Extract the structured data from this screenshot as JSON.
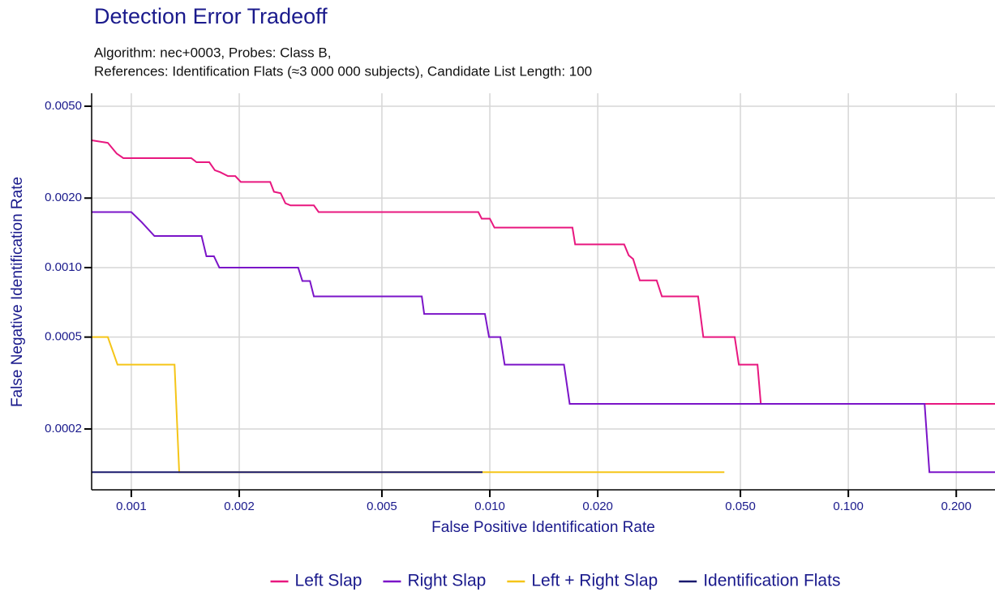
{
  "chart_data": {
    "type": "line",
    "title": "Detection Error Tradeoff",
    "subtitle": [
      "Algorithm: nec+0003, Probes: Class B,",
      "References: Identification Flats (≈3 000 000 subjects), Candidate List Length: 100"
    ],
    "xlabel": "False Positive Identification Rate",
    "ylabel": "False Negative Identification Rate",
    "xlog": true,
    "ylog": true,
    "grid": true,
    "legend": "bottom",
    "xlim": [
      0.000775,
      0.2565
    ],
    "ylim": [
      0.000109,
      0.00569
    ],
    "xticks": [
      0.001,
      0.002,
      0.005,
      {
        "value": 0.01,
        "label": "0.010"
      },
      {
        "value": 0.02,
        "label": "0.020"
      },
      {
        "value": 0.05,
        "label": "0.050"
      },
      {
        "value": 0.1,
        "label": "0.100"
      },
      {
        "value": 0.2,
        "label": "0.200"
      }
    ],
    "yticks": [
      {
        "value": 0.005,
        "label": "0.0050"
      },
      {
        "value": 0.002,
        "label": "0.0020"
      },
      {
        "value": 0.001,
        "label": "0.0010"
      },
      0.0005,
      0.0002
    ],
    "series": [
      {
        "name": "Left Slap",
        "color": "#e8177f",
        "x": [
          0.000775,
          0.00086,
          0.00091,
          0.00095,
          0.00147,
          0.00152,
          0.00165,
          0.00171,
          0.00177,
          0.00186,
          0.00195,
          0.00202,
          0.00244,
          0.0025,
          0.00261,
          0.00269,
          0.00278,
          0.00323,
          0.00333,
          0.00929,
          0.00949,
          0.01,
          0.0103,
          0.017,
          0.0173,
          0.0237,
          0.0244,
          0.0251,
          0.0262,
          0.0292,
          0.0302,
          0.0381,
          0.0394,
          0.0482,
          0.0495,
          0.0558,
          0.057,
          0.2565
        ],
        "values": [
          0.00356,
          0.00347,
          0.00312,
          0.00298,
          0.00298,
          0.00286,
          0.00286,
          0.00264,
          0.00259,
          0.00249,
          0.00249,
          0.00235,
          0.00235,
          0.00213,
          0.0021,
          0.0019,
          0.00186,
          0.00186,
          0.00174,
          0.00174,
          0.00163,
          0.00163,
          0.00149,
          0.00149,
          0.00126,
          0.00126,
          0.00113,
          0.00109,
          0.00088,
          0.00088,
          0.00075,
          0.00075,
          0.0005,
          0.0005,
          0.00038,
          0.00038,
          0.000257,
          0.000257
        ]
      },
      {
        "name": "Right Slap",
        "color": "#7b14c8",
        "x": [
          0.000775,
          0.001,
          0.00107,
          0.00116,
          0.00157,
          0.00162,
          0.0017,
          0.00176,
          0.00292,
          0.003,
          0.00315,
          0.00323,
          0.00646,
          0.00656,
          0.00969,
          0.00995,
          0.0107,
          0.011,
          0.0161,
          0.0167,
          0.1632,
          0.1683,
          0.2565
        ],
        "values": [
          0.00174,
          0.00174,
          0.00157,
          0.00137,
          0.00137,
          0.00112,
          0.00112,
          0.001,
          0.001,
          0.000875,
          0.000875,
          0.00075,
          0.00075,
          0.00063,
          0.00063,
          0.0005,
          0.0005,
          0.00038,
          0.00038,
          0.000257,
          0.000257,
          0.00013,
          0.00013
        ]
      },
      {
        "name": "Left + Right Slap",
        "color": "#f5c518",
        "x": [
          0.000775,
          0.00086,
          0.000915,
          0.00132,
          0.00136,
          0.0451
        ],
        "values": [
          0.0005,
          0.0005,
          0.00038,
          0.00038,
          0.00013,
          0.00013
        ]
      },
      {
        "name": "Identification Flats",
        "color": "#1a1a6e",
        "x": [
          0.000775,
          0.00954
        ],
        "values": [
          0.00013,
          0.00013
        ]
      }
    ]
  }
}
